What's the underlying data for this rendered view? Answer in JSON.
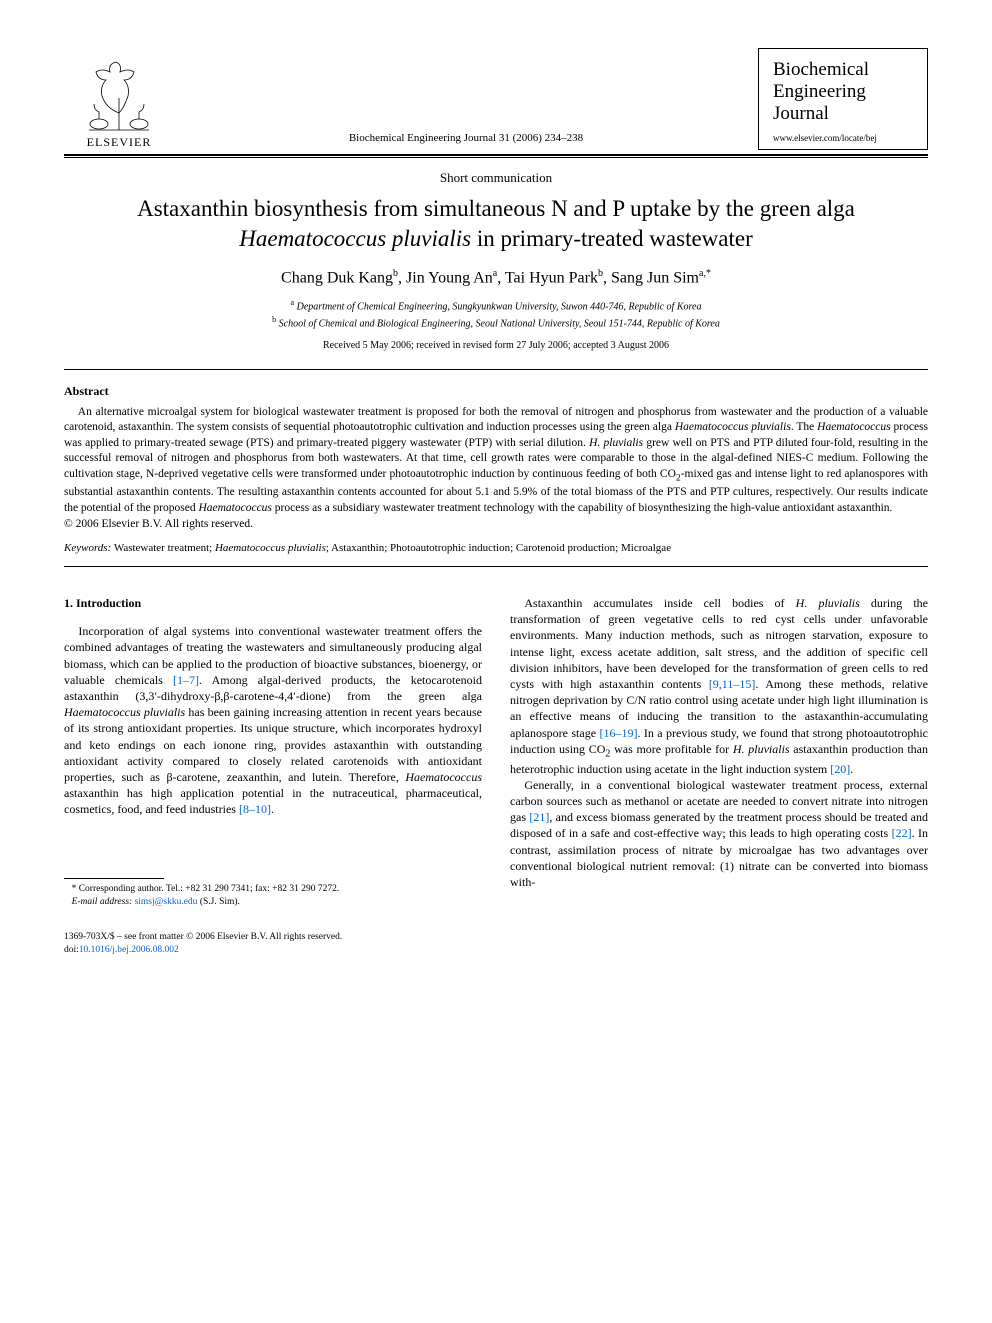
{
  "publisher": {
    "name": "ELSEVIER"
  },
  "header_citation": "Biochemical Engineering Journal 31 (2006) 234–238",
  "journal": {
    "name_line1": "Biochemical",
    "name_line2": "Engineering",
    "name_line3": "Journal",
    "url": "www.elsevier.com/locate/bej"
  },
  "article_type": "Short communication",
  "title_html": "Astaxanthin biosynthesis from simultaneous N and P uptake by the green alga <em>Haematococcus pluvialis</em> in primary-treated wastewater",
  "authors_html": "Chang Duk Kang<sup>b</sup>, Jin Young An<sup>a</sup>, Tai Hyun Park<sup>b</sup>, Sang Jun Sim<sup>a,*</sup>",
  "affiliations": {
    "a": "Department of Chemical Engineering, Sungkyunkwan University, Suwon 440-746, Republic of Korea",
    "b": "School of Chemical and Biological Engineering, Seoul National University, Seoul 151-744, Republic of Korea"
  },
  "dates": "Received 5 May 2006; received in revised form 27 July 2006; accepted 3 August 2006",
  "abstract": {
    "heading": "Abstract",
    "body_html": "An alternative microalgal system for biological wastewater treatment is proposed for both the removal of nitrogen and phosphorus from wastewater and the production of a valuable carotenoid, astaxanthin. The system consists of sequential photoautotrophic cultivation and induction processes using the green alga <em>Haematococcus pluvialis</em>. The <em>Haematococcus</em> process was applied to primary-treated sewage (PTS) and primary-treated piggery wastewater (PTP) with serial dilution. <em>H. pluvialis</em> grew well on PTS and PTP diluted four-fold, resulting in the successful removal of nitrogen and phosphorus from both wastewaters. At that time, cell growth rates were comparable to those in the algal-defined NIES-C medium. Following the cultivation stage, N-deprived vegetative cells were transformed under photoautotrophic induction by continuous feeding of both CO<sub>2</sub>-mixed gas and intense light to red aplanospores with substantial astaxanthin contents. The resulting astaxanthin contents accounted for about 5.1 and 5.9% of the total biomass of the PTS and PTP cultures, respectively. Our results indicate the potential of the proposed <em>Haematococcus</em> process as a subsidiary wastewater treatment technology with the capability of biosynthesizing the high-value antioxidant astaxanthin.",
    "copyright": "© 2006 Elsevier B.V. All rights reserved."
  },
  "keywords": {
    "label": "Keywords:",
    "text_html": " Wastewater treatment; <em>Haematococcus pluvialis</em>; Astaxanthin; Photoautotrophic induction; Carotenoid production; Microalgae"
  },
  "intro": {
    "heading": "1.  Introduction",
    "p1_html": "Incorporation of algal systems into conventional wastewater treatment offers the combined advantages of treating the wastewaters and simultaneously producing algal biomass, which can be applied to the production of bioactive substances, bioenergy, or valuable chemicals <a class=\"ref-link\" href=\"#\">[1–7]</a>. Among algal-derived products, the ketocarotenoid astaxanthin (3,3′-dihydroxy-β,β-carotene-4,4′-dione) from the green alga <em>Haematococcus pluvialis</em> has been gaining increasing attention in recent years because of its strong antioxidant properties. Its unique structure, which incorporates hydroxyl and keto endings on each ionone ring, provides astaxanthin with outstanding antioxidant activity compared to closely related carotenoids with antioxidant properties, such as β-carotene, zeaxanthin, and lutein. Therefore, <em>Haematococcus</em> astaxanthin has high application potential in the nutraceutical, pharmaceutical, cosmetics, food, and feed industries <a class=\"ref-link\" href=\"#\">[8–10]</a>.",
    "p2_html": "Astaxanthin accumulates inside cell bodies of <em>H. pluvialis</em> during the transformation of green vegetative cells to red cyst cells under unfavorable environments. Many induction methods, such as nitrogen starvation, exposure to intense light, excess acetate addition, salt stress, and the addition of specific cell division inhibitors, have been developed for the transformation of green cells to red cysts with high astaxanthin contents <a class=\"ref-link\" href=\"#\">[9,11–15]</a>. Among these methods, relative nitrogen deprivation by C/N ratio control using acetate under high light illumination is an effective means of inducing the transition to the astaxanthin-accumulating aplanospore stage <a class=\"ref-link\" href=\"#\">[16–19]</a>. In a previous study, we found that strong photoautotrophic induction using CO<sub>2</sub> was more profitable for <em>H. pluvialis</em> astaxanthin production than heterotrophic induction using acetate in the light induction system <a class=\"ref-link\" href=\"#\">[20]</a>.",
    "p3_html": "Generally, in a conventional biological wastewater treatment process, external carbon sources such as methanol or acetate are needed to convert nitrate into nitrogen gas <a class=\"ref-link\" href=\"#\">[21]</a>, and excess biomass generated by the treatment process should be treated and disposed of in a safe and cost-effective way; this leads to high operating costs <a class=\"ref-link\" href=\"#\">[22]</a>. In contrast, assimilation process of nitrate by microalgae has two advantages over conventional biological nutrient removal: (1) nitrate can be converted into biomass with-"
  },
  "footnote": {
    "corresponding": "Corresponding author. Tel.: +82 31 290 7341; fax: +82 31 290 7272.",
    "email_label": "E-mail address:",
    "email": "simsj@skku.edu",
    "email_who": "(S.J. Sim)."
  },
  "footer": {
    "line1": "1369-703X/$ – see front matter © 2006 Elsevier B.V. All rights reserved.",
    "doi_label": "doi:",
    "doi": "10.1016/j.bej.2006.08.002"
  },
  "colors": {
    "text": "#000000",
    "bg": "#ffffff",
    "link": "#0066cc"
  }
}
